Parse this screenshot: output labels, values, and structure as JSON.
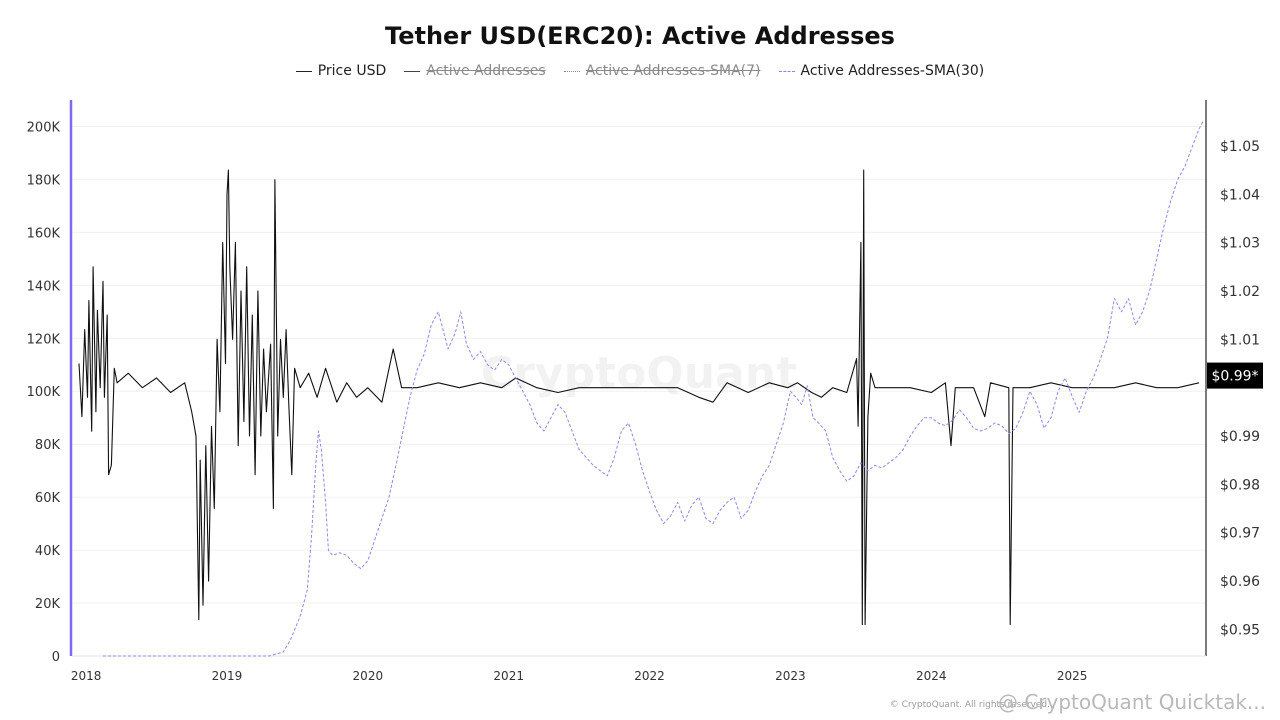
{
  "chart_data": {
    "type": "line",
    "title": "Tether USD(ERC20): Active Addresses",
    "legend_placement": "top-center",
    "grid": true,
    "x_ticks": [
      "2018",
      "2019",
      "2020",
      "2021",
      "2022",
      "2023",
      "2024",
      "2025"
    ],
    "x_range": [
      2017.9,
      2025.95
    ],
    "y_left": {
      "range": [
        0,
        210000
      ],
      "ticks": [
        0,
        20000,
        40000,
        60000,
        80000,
        100000,
        120000,
        140000,
        160000,
        180000,
        200000
      ],
      "tick_labels": [
        "0",
        "20K",
        "40K",
        "60K",
        "80K",
        "100K",
        "120K",
        "140K",
        "160K",
        "180K",
        "200K"
      ]
    },
    "y_right": {
      "range": [
        0.9445,
        1.0595
      ],
      "ticks": [
        0.95,
        0.96,
        0.97,
        0.98,
        0.99,
        1.0,
        1.01,
        1.02,
        1.03,
        1.04,
        1.05
      ],
      "tick_labels": [
        "$0.95",
        "$0.96",
        "$0.97",
        "$0.98",
        "$0.99",
        "",
        "$1.01",
        "$1.02",
        "$1.03",
        "$1.04",
        "$1.05"
      ],
      "current_label": "$0.99*",
      "current_value": 1.0025
    },
    "series": [
      {
        "name": "Price USD",
        "axis": "right",
        "visible": true,
        "color": "#111111",
        "style": "solid",
        "points": [
          [
            2017.95,
            1.005
          ],
          [
            2017.97,
            0.994
          ],
          [
            2017.99,
            1.012
          ],
          [
            2018.01,
            0.998
          ],
          [
            2018.02,
            1.018
          ],
          [
            2018.04,
            0.991
          ],
          [
            2018.05,
            1.025
          ],
          [
            2018.07,
            0.995
          ],
          [
            2018.08,
            1.016
          ],
          [
            2018.1,
            1.0
          ],
          [
            2018.12,
            1.022
          ],
          [
            2018.13,
            0.998
          ],
          [
            2018.15,
            1.015
          ],
          [
            2018.16,
            0.982
          ],
          [
            2018.18,
            0.984
          ],
          [
            2018.2,
            1.004
          ],
          [
            2018.22,
            1.001
          ],
          [
            2018.3,
            1.003
          ],
          [
            2018.4,
            1.0
          ],
          [
            2018.5,
            1.002
          ],
          [
            2018.6,
            0.999
          ],
          [
            2018.7,
            1.001
          ],
          [
            2018.75,
            0.995
          ],
          [
            2018.78,
            0.99
          ],
          [
            2018.8,
            0.952
          ],
          [
            2018.81,
            0.985
          ],
          [
            2018.83,
            0.955
          ],
          [
            2018.85,
            0.988
          ],
          [
            2018.87,
            0.96
          ],
          [
            2018.89,
            0.992
          ],
          [
            2018.91,
            0.975
          ],
          [
            2018.93,
            1.01
          ],
          [
            2018.95,
            0.995
          ],
          [
            2018.97,
            1.03
          ],
          [
            2018.99,
            1.005
          ],
          [
            2019.0,
            1.04
          ],
          [
            2019.01,
            1.045
          ],
          [
            2019.02,
            1.025
          ],
          [
            2019.04,
            1.01
          ],
          [
            2019.06,
            1.03
          ],
          [
            2019.08,
            0.988
          ],
          [
            2019.1,
            1.02
          ],
          [
            2019.12,
            0.993
          ],
          [
            2019.14,
            1.025
          ],
          [
            2019.16,
            0.99
          ],
          [
            2019.18,
            1.015
          ],
          [
            2019.2,
            0.982
          ],
          [
            2019.22,
            1.02
          ],
          [
            2019.24,
            0.99
          ],
          [
            2019.26,
            1.008
          ],
          [
            2019.28,
            0.995
          ],
          [
            2019.31,
            1.009
          ],
          [
            2019.33,
            0.975
          ],
          [
            2019.34,
            1.043
          ],
          [
            2019.36,
            0.99
          ],
          [
            2019.38,
            1.01
          ],
          [
            2019.4,
            0.998
          ],
          [
            2019.42,
            1.012
          ],
          [
            2019.44,
            0.996
          ],
          [
            2019.46,
            0.982
          ],
          [
            2019.48,
            1.004
          ],
          [
            2019.52,
            1.0
          ],
          [
            2019.58,
            1.003
          ],
          [
            2019.64,
            0.998
          ],
          [
            2019.7,
            1.004
          ],
          [
            2019.78,
            0.997
          ],
          [
            2019.85,
            1.001
          ],
          [
            2019.92,
            0.998
          ],
          [
            2020.0,
            1.0
          ],
          [
            2020.1,
            0.997
          ],
          [
            2020.18,
            1.008
          ],
          [
            2020.24,
            1.0
          ],
          [
            2020.35,
            1.0
          ],
          [
            2020.5,
            1.001
          ],
          [
            2020.65,
            1.0
          ],
          [
            2020.8,
            1.001
          ],
          [
            2020.95,
            1.0
          ],
          [
            2021.05,
            1.002
          ],
          [
            2021.2,
            1.0
          ],
          [
            2021.35,
            0.999
          ],
          [
            2021.5,
            1.0
          ],
          [
            2021.65,
            1.0
          ],
          [
            2021.8,
            1.0
          ],
          [
            2022.0,
            1.0
          ],
          [
            2022.2,
            1.0
          ],
          [
            2022.35,
            0.998
          ],
          [
            2022.45,
            0.997
          ],
          [
            2022.55,
            1.001
          ],
          [
            2022.7,
            0.999
          ],
          [
            2022.85,
            1.001
          ],
          [
            2022.98,
            1.0
          ],
          [
            2023.05,
            1.001
          ],
          [
            2023.15,
            0.999
          ],
          [
            2023.22,
            0.998
          ],
          [
            2023.3,
            1.0
          ],
          [
            2023.4,
            0.999
          ],
          [
            2023.47,
            1.006
          ],
          [
            2023.48,
            0.992
          ],
          [
            2023.5,
            1.03
          ],
          [
            2023.51,
            0.951
          ],
          [
            2023.52,
            1.045
          ],
          [
            2023.53,
            0.951
          ],
          [
            2023.55,
            0.994
          ],
          [
            2023.57,
            1.003
          ],
          [
            2023.6,
            1.0
          ],
          [
            2023.7,
            1.0
          ],
          [
            2023.85,
            1.0
          ],
          [
            2024.0,
            0.999
          ],
          [
            2024.1,
            1.001
          ],
          [
            2024.14,
            0.988
          ],
          [
            2024.17,
            1.0
          ],
          [
            2024.3,
            1.0
          ],
          [
            2024.38,
            0.994
          ],
          [
            2024.42,
            1.001
          ],
          [
            2024.55,
            1.0
          ],
          [
            2024.56,
            0.951
          ],
          [
            2024.58,
            1.0
          ],
          [
            2024.7,
            1.0
          ],
          [
            2024.85,
            1.001
          ],
          [
            2025.0,
            1.0
          ],
          [
            2025.15,
            1.0
          ],
          [
            2025.3,
            1.0
          ],
          [
            2025.45,
            1.001
          ],
          [
            2025.6,
            1.0
          ],
          [
            2025.75,
            1.0
          ],
          [
            2025.9,
            1.001
          ]
        ]
      },
      {
        "name": "Active Addresses",
        "axis": "left",
        "visible": false,
        "color": "#333333",
        "style": "solid",
        "points": []
      },
      {
        "name": "Active Addresses-SMA(7)",
        "axis": "left",
        "visible": false,
        "color": "#888888",
        "style": "dotted",
        "points": []
      },
      {
        "name": "Active Addresses-SMA(30)",
        "axis": "left",
        "visible": true,
        "color": "#8a88ee",
        "style": "dashed",
        "points": [
          [
            2018.12,
            0
          ],
          [
            2018.5,
            0
          ],
          [
            2019.0,
            0
          ],
          [
            2019.3,
            0
          ],
          [
            2019.4,
            1500
          ],
          [
            2019.45,
            6000
          ],
          [
            2019.52,
            15000
          ],
          [
            2019.57,
            25000
          ],
          [
            2019.6,
            45000
          ],
          [
            2019.63,
            72000
          ],
          [
            2019.65,
            85000
          ],
          [
            2019.67,
            78000
          ],
          [
            2019.7,
            58000
          ],
          [
            2019.72,
            40000
          ],
          [
            2019.75,
            38000
          ],
          [
            2019.8,
            39000
          ],
          [
            2019.85,
            38000
          ],
          [
            2019.9,
            35000
          ],
          [
            2019.95,
            33000
          ],
          [
            2020.0,
            36000
          ],
          [
            2020.05,
            44000
          ],
          [
            2020.1,
            52000
          ],
          [
            2020.15,
            60000
          ],
          [
            2020.2,
            72000
          ],
          [
            2020.25,
            85000
          ],
          [
            2020.3,
            98000
          ],
          [
            2020.35,
            108000
          ],
          [
            2020.4,
            114000
          ],
          [
            2020.45,
            125000
          ],
          [
            2020.5,
            130000
          ],
          [
            2020.53,
            124000
          ],
          [
            2020.57,
            116000
          ],
          [
            2020.62,
            122000
          ],
          [
            2020.66,
            130000
          ],
          [
            2020.7,
            118000
          ],
          [
            2020.75,
            112000
          ],
          [
            2020.8,
            115000
          ],
          [
            2020.85,
            110000
          ],
          [
            2020.9,
            108000
          ],
          [
            2020.95,
            112000
          ],
          [
            2021.0,
            110000
          ],
          [
            2021.05,
            105000
          ],
          [
            2021.1,
            100000
          ],
          [
            2021.15,
            95000
          ],
          [
            2021.2,
            88000
          ],
          [
            2021.25,
            85000
          ],
          [
            2021.3,
            90000
          ],
          [
            2021.35,
            95000
          ],
          [
            2021.4,
            92000
          ],
          [
            2021.45,
            85000
          ],
          [
            2021.5,
            78000
          ],
          [
            2021.55,
            75000
          ],
          [
            2021.6,
            72000
          ],
          [
            2021.65,
            70000
          ],
          [
            2021.7,
            68000
          ],
          [
            2021.75,
            75000
          ],
          [
            2021.8,
            85000
          ],
          [
            2021.85,
            88000
          ],
          [
            2021.9,
            80000
          ],
          [
            2021.95,
            70000
          ],
          [
            2022.0,
            62000
          ],
          [
            2022.05,
            55000
          ],
          [
            2022.1,
            50000
          ],
          [
            2022.15,
            53000
          ],
          [
            2022.2,
            58000
          ],
          [
            2022.25,
            51000
          ],
          [
            2022.3,
            57000
          ],
          [
            2022.35,
            60000
          ],
          [
            2022.4,
            52000
          ],
          [
            2022.45,
            50000
          ],
          [
            2022.5,
            55000
          ],
          [
            2022.55,
            58000
          ],
          [
            2022.6,
            60000
          ],
          [
            2022.65,
            52000
          ],
          [
            2022.7,
            55000
          ],
          [
            2022.75,
            62000
          ],
          [
            2022.8,
            68000
          ],
          [
            2022.85,
            72000
          ],
          [
            2022.9,
            80000
          ],
          [
            2022.95,
            88000
          ],
          [
            2023.0,
            100000
          ],
          [
            2023.05,
            97000
          ],
          [
            2023.08,
            95000
          ],
          [
            2023.12,
            102000
          ],
          [
            2023.16,
            90000
          ],
          [
            2023.2,
            88000
          ],
          [
            2023.25,
            85000
          ],
          [
            2023.3,
            75000
          ],
          [
            2023.35,
            70000
          ],
          [
            2023.4,
            66000
          ],
          [
            2023.45,
            68000
          ],
          [
            2023.5,
            73000
          ],
          [
            2023.55,
            70000
          ],
          [
            2023.6,
            72000
          ],
          [
            2023.65,
            71000
          ],
          [
            2023.7,
            73000
          ],
          [
            2023.75,
            75000
          ],
          [
            2023.8,
            78000
          ],
          [
            2023.85,
            83000
          ],
          [
            2023.9,
            87000
          ],
          [
            2023.95,
            90000
          ],
          [
            2024.0,
            90000
          ],
          [
            2024.05,
            88000
          ],
          [
            2024.1,
            87000
          ],
          [
            2024.15,
            89000
          ],
          [
            2024.2,
            93000
          ],
          [
            2024.25,
            90000
          ],
          [
            2024.3,
            86000
          ],
          [
            2024.35,
            85000
          ],
          [
            2024.4,
            86000
          ],
          [
            2024.45,
            88000
          ],
          [
            2024.5,
            87000
          ],
          [
            2024.55,
            84000
          ],
          [
            2024.6,
            86000
          ],
          [
            2024.65,
            92000
          ],
          [
            2024.7,
            100000
          ],
          [
            2024.75,
            95000
          ],
          [
            2024.8,
            86000
          ],
          [
            2024.85,
            90000
          ],
          [
            2024.9,
            100000
          ],
          [
            2024.95,
            105000
          ],
          [
            2025.0,
            98000
          ],
          [
            2025.05,
            92000
          ],
          [
            2025.1,
            100000
          ],
          [
            2025.15,
            105000
          ],
          [
            2025.2,
            112000
          ],
          [
            2025.25,
            120000
          ],
          [
            2025.3,
            135000
          ],
          [
            2025.35,
            130000
          ],
          [
            2025.4,
            135000
          ],
          [
            2025.45,
            125000
          ],
          [
            2025.5,
            130000
          ],
          [
            2025.55,
            138000
          ],
          [
            2025.6,
            150000
          ],
          [
            2025.65,
            162000
          ],
          [
            2025.7,
            172000
          ],
          [
            2025.75,
            180000
          ],
          [
            2025.8,
            185000
          ],
          [
            2025.85,
            192000
          ],
          [
            2025.9,
            199000
          ],
          [
            2025.93,
            202000
          ]
        ]
      }
    ]
  },
  "watermark": "CryptoQuant",
  "footer": {
    "source": "@ CryptoQuant Quicktak...",
    "copyright": "© CryptoQuant. All rights reserved."
  }
}
